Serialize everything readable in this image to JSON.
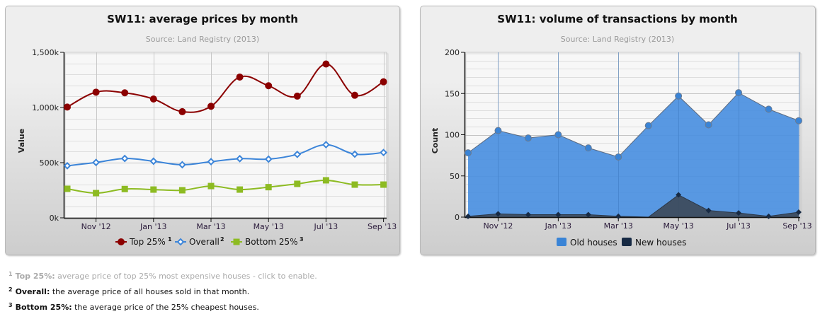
{
  "chart_data": [
    {
      "type": "line",
      "title": "SW11: average prices by month",
      "subtitle": "Source: Land Registry (2013)",
      "xlabel": "",
      "ylabel": "Value",
      "ylim": [
        0,
        1500000
      ],
      "yticks": [
        "0k",
        "500k",
        "1,000k",
        "1,500k"
      ],
      "x": [
        "Oct '12",
        "Nov '12",
        "Dec '12",
        "Jan '13",
        "Feb '13",
        "Mar '13",
        "Apr '13",
        "May '13",
        "Jun '13",
        "Jul '13",
        "Aug '13",
        "Sep '13"
      ],
      "xtick_labels": [
        "Nov '12",
        "Jan '13",
        "Mar '13",
        "May '13",
        "Jul '13",
        "Sep '13"
      ],
      "grid": true,
      "legend_position": "bottom",
      "series": [
        {
          "name": "Top 25%",
          "sup": "1",
          "color": "#8b0000",
          "marker": "circle",
          "values": [
            1004000,
            1139000,
            1133000,
            1077000,
            962000,
            1011000,
            1276000,
            1197000,
            1103000,
            1394000,
            1111000,
            1233000
          ]
        },
        {
          "name": "Overall",
          "sup": "2",
          "color": "#3c85d9",
          "marker": "diamond-open",
          "values": [
            472000,
            502000,
            538000,
            513000,
            481000,
            509000,
            536000,
            532000,
            575000,
            663000,
            577000,
            592000
          ]
        },
        {
          "name": "Bottom 25%",
          "sup": "3",
          "color": "#8dbb22",
          "marker": "square",
          "values": [
            263000,
            224000,
            261000,
            256000,
            250000,
            288000,
            256000,
            278000,
            308000,
            340000,
            301000,
            301000
          ]
        }
      ]
    },
    {
      "type": "area",
      "title": "SW11: volume of transactions by month",
      "subtitle": "Source: Land Registry (2013)",
      "xlabel": "",
      "ylabel": "Count",
      "ylim": [
        0,
        200
      ],
      "yticks": [
        "0",
        "50",
        "100",
        "150",
        "200"
      ],
      "x": [
        "Oct '12",
        "Nov '12",
        "Dec '12",
        "Jan '13",
        "Feb '13",
        "Mar '13",
        "Apr '13",
        "May '13",
        "Jun '13",
        "Jul '13",
        "Aug '13",
        "Sep '13"
      ],
      "xtick_labels": [
        "Nov '12",
        "Jan '13",
        "Mar '13",
        "May '13",
        "Jul '13",
        "Sep '13"
      ],
      "grid": true,
      "legend_position": "bottom",
      "series": [
        {
          "name": "Old houses",
          "color": "#4a8fdf",
          "marker": "circle",
          "values": [
            78,
            105,
            96,
            100,
            84,
            73,
            111,
            147,
            112,
            151,
            131,
            117
          ]
        },
        {
          "name": "New houses",
          "color": "#172a44",
          "marker": "diamond",
          "values": [
            1,
            4,
            3,
            3,
            3,
            1,
            null,
            27,
            8,
            5,
            1,
            6
          ]
        }
      ]
    }
  ],
  "footnotes": [
    {
      "num": "1",
      "term": "Top 25%:",
      "text": " average price of top 25% most expensive houses - click to enable.",
      "disabled": true
    },
    {
      "num": "2",
      "term": "Overall:",
      "text": " the average price of all houses sold in that month.",
      "disabled": false
    },
    {
      "num": "3",
      "term": "Bottom 25%:",
      "text": " the average price of the 25% cheapest houses.",
      "disabled": false
    }
  ]
}
